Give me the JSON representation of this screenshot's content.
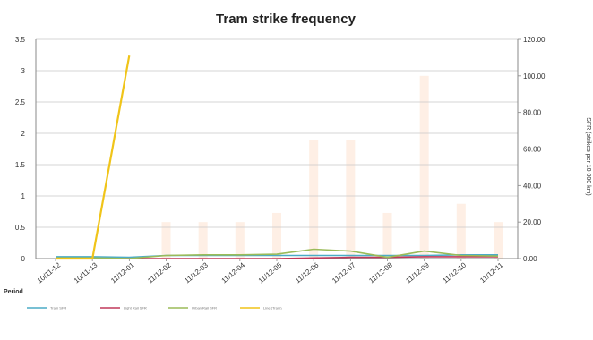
{
  "chart_data": {
    "type": "line",
    "title": "Tram strike frequency",
    "xlabel": "Period",
    "ylabel_right": "SFR (strikes per 10 000 km)",
    "categories": [
      "10/11-12",
      "10/11-13",
      "11/12-01",
      "11/12-02",
      "11/12-03",
      "11/12-04",
      "11/12-05",
      "11/12-06",
      "11/12-07",
      "11/12-08",
      "11/12-09",
      "11/12-10",
      "11/12-11"
    ],
    "ylim_left": [
      0,
      3.5
    ],
    "yticks_left": [
      "0",
      "0.5",
      "1",
      "1.5",
      "2",
      "2.5",
      "3",
      "3.5"
    ],
    "ylim_right": [
      0,
      120
    ],
    "yticks_right": [
      "0.00",
      "20.00",
      "40.00",
      "60.00",
      "80.00",
      "100.00",
      "120.00"
    ],
    "bars": {
      "axis": "right",
      "color": "#fde9dc",
      "values": [
        0,
        0,
        0,
        20,
        20,
        20,
        25,
        65,
        65,
        25,
        100,
        30,
        20
      ]
    },
    "series": [
      {
        "name": "Tram SFR",
        "color": "#4bacc6",
        "values": [
          0.03,
          0.03,
          0.02,
          0.05,
          0.05,
          0.05,
          0.05,
          0.05,
          0.05,
          0.05,
          0.05,
          0.06,
          0.06
        ]
      },
      {
        "name": "Light Rail SFR",
        "color": "#c0385a",
        "values": [
          0.0,
          0.0,
          0.0,
          0.0,
          0.0,
          0.0,
          0.0,
          0.01,
          0.02,
          0.02,
          0.03,
          0.03,
          0.03
        ]
      },
      {
        "name": "Urban Rail SFR",
        "color": "#9bbb59",
        "values": [
          0.01,
          0.01,
          0.0,
          0.05,
          0.06,
          0.06,
          0.07,
          0.15,
          0.12,
          0.02,
          0.12,
          0.05,
          0.04
        ]
      },
      {
        "name": "Line (Tram)",
        "color": "#f0c419",
        "points": [
          [
            0,
            0.0
          ],
          [
            1,
            0.0
          ],
          [
            2,
            3.24
          ]
        ]
      }
    ],
    "legend_position": "bottom-left",
    "grid": true
  }
}
